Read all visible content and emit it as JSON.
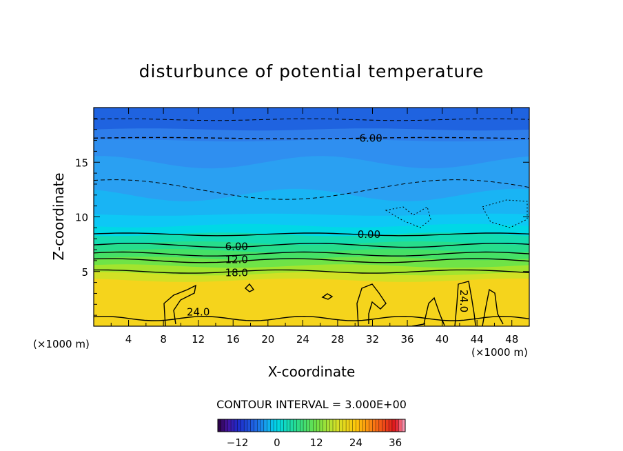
{
  "chart_data": {
    "type": "heatmap",
    "title": "disturbunce of potential temperature",
    "xlabel": "X-coordinate",
    "ylabel": "Z-coordinate",
    "x_unit": "(×1000 m)",
    "z_unit": "(×1000 m)",
    "xlim": [
      0,
      50
    ],
    "ylim": [
      0,
      20
    ],
    "x_ticks": [
      4,
      8,
      12,
      16,
      20,
      24,
      28,
      32,
      36,
      40,
      44,
      48
    ],
    "y_ticks": [
      5,
      10,
      15
    ],
    "contour_interval_text": "CONTOUR INTERVAL = 3.000E+00",
    "colorbar": {
      "min": -18,
      "max": 39,
      "ticks": [
        -12,
        0,
        12,
        24,
        36
      ]
    },
    "fill_layers": [
      {
        "z": 18.0,
        "value": -15,
        "color": "#2e7dea"
      },
      {
        "z": 17.0,
        "value": -12,
        "color": "#2f8ff0"
      },
      {
        "z": 15.0,
        "value": -9,
        "color": "#2aa0f2"
      },
      {
        "z": 12.0,
        "value": -6,
        "color": "#19b4f4"
      },
      {
        "z": 10.2,
        "value": -3,
        "color": "#0dc8f5"
      },
      {
        "z": 9.2,
        "value": 0,
        "color": "#00d8e6"
      },
      {
        "z": 8.4,
        "value": 3,
        "color": "#13dcb0"
      },
      {
        "z": 7.6,
        "value": 6,
        "color": "#27dd8c"
      },
      {
        "z": 6.9,
        "value": 9,
        "color": "#45e066"
      },
      {
        "z": 6.2,
        "value": 12,
        "color": "#6fe347"
      },
      {
        "z": 5.5,
        "value": 15,
        "color": "#a3e42e"
      },
      {
        "z": 4.8,
        "value": 18,
        "color": "#d2e025"
      },
      {
        "z": 4.2,
        "value": 21,
        "color": "#f5d41c"
      },
      {
        "z": 0.0,
        "value": 24,
        "color": "#ffc40a"
      }
    ],
    "contour_labels": [
      {
        "text": "-6.00",
        "x": 31.6,
        "z": 17.2
      },
      {
        "text": "0.00",
        "x": 31.6,
        "z": 8.4
      },
      {
        "text": "6.00",
        "x": 16.4,
        "z": 7.3
      },
      {
        "text": "12.0",
        "x": 16.4,
        "z": 6.1
      },
      {
        "text": "18.0",
        "x": 16.4,
        "z": 4.9
      },
      {
        "text": "24.0",
        "x": 12.0,
        "z": 1.3
      },
      {
        "text": "24.0",
        "x": 42.5,
        "z": 2.3
      }
    ]
  }
}
